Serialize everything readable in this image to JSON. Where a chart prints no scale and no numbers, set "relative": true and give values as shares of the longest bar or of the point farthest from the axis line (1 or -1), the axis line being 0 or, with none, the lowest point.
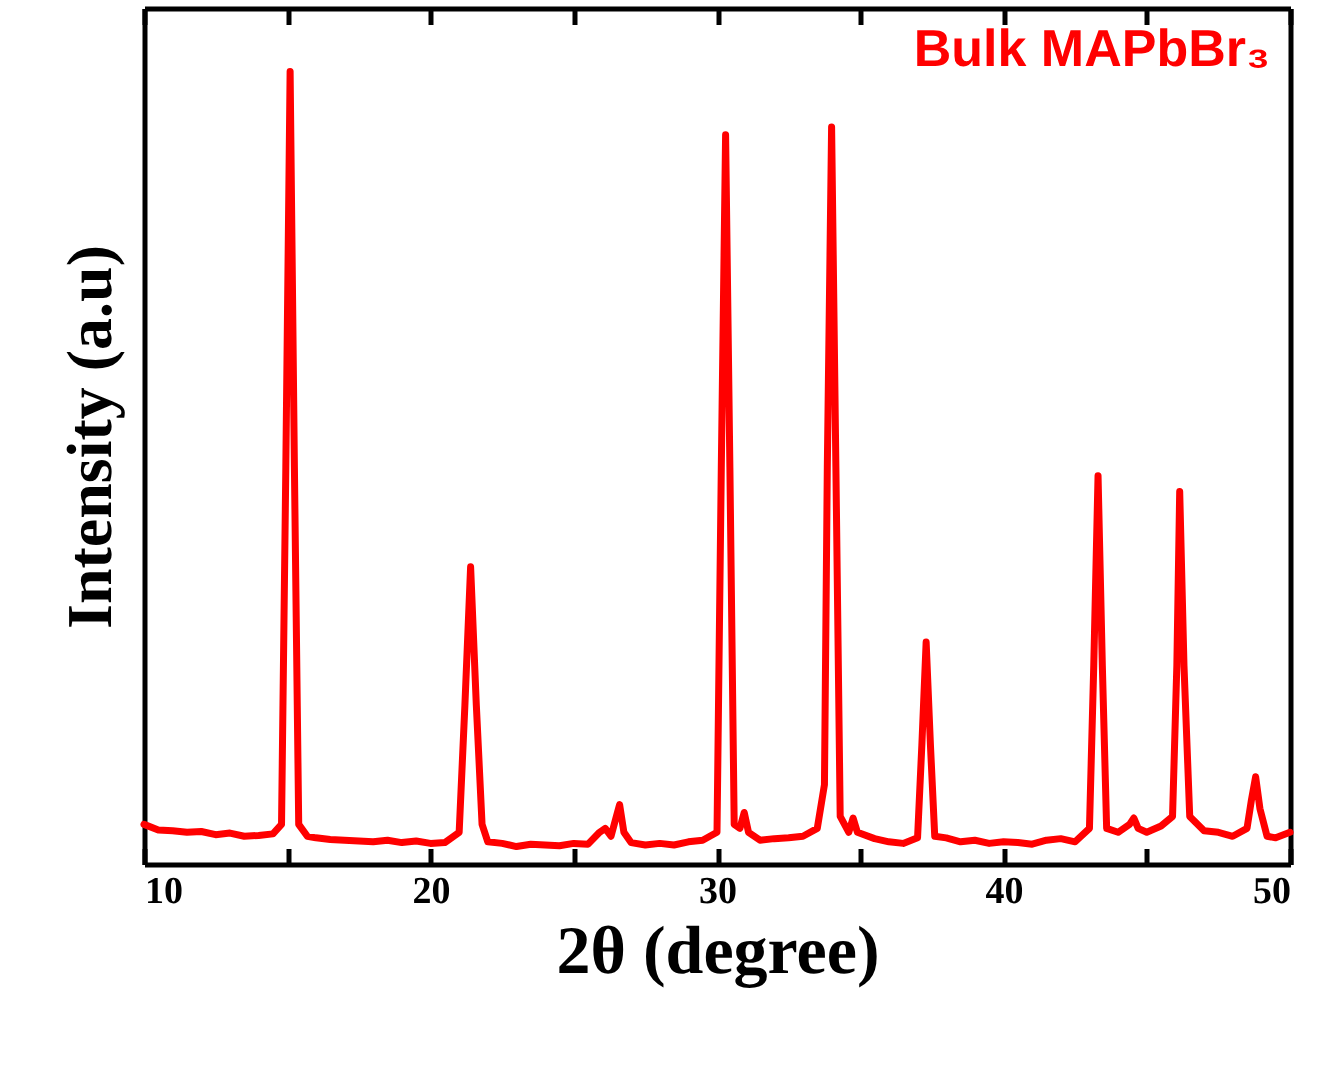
{
  "chart_data": {
    "type": "line",
    "xlabel": "2θ (degree)",
    "ylabel": "Intensity (a.u)",
    "relative": true,
    "legend": false,
    "grid": false,
    "marker": "none",
    "line_style": "solid",
    "xlim": [
      10,
      50
    ],
    "xticks": [
      10,
      {
        "value": 15,
        "label": null
      },
      20,
      {
        "value": 25,
        "label": null
      },
      30,
      {
        "value": 35,
        "label": null
      },
      40,
      {
        "value": 45,
        "label": null
      },
      50
    ],
    "series": [
      {
        "name": "Bulk MAPbBr₃",
        "color": "#ff0000",
        "x": [
          10,
          10.5,
          11,
          11.5,
          12,
          12.5,
          13,
          13.5,
          14,
          14.5,
          14.8,
          14.95,
          15.1,
          15.25,
          15.4,
          15.7,
          16,
          16.5,
          17,
          17.5,
          18,
          18.5,
          19,
          19.5,
          20,
          20.5,
          21,
          21.2,
          21.4,
          21.6,
          21.8,
          22,
          22.5,
          23,
          23.5,
          24,
          24.5,
          25,
          25.5,
          25.9,
          26.1,
          26.3,
          26.45,
          26.6,
          26.75,
          27,
          27.5,
          28,
          28.5,
          29,
          29.5,
          30,
          30.15,
          30.3,
          30.45,
          30.6,
          30.8,
          30.95,
          31.1,
          31.5,
          32,
          32.5,
          33,
          33.5,
          33.75,
          33.85,
          34,
          34.15,
          34.3,
          34.6,
          34.75,
          34.9,
          35.5,
          36,
          36.5,
          37,
          37.15,
          37.3,
          37.45,
          37.6,
          38,
          38.5,
          39,
          39.5,
          40,
          40.5,
          41,
          41.5,
          42,
          42.5,
          43,
          43.15,
          43.3,
          43.45,
          43.6,
          44,
          44.4,
          44.55,
          44.7,
          45,
          45.5,
          45.9,
          46.05,
          46.15,
          46.3,
          46.5,
          47,
          47.5,
          48,
          48.5,
          48.65,
          48.8,
          48.95,
          49.2,
          49.5,
          50
        ],
        "values": [
          0.05,
          0.043,
          0.042,
          0.04,
          0.041,
          0.037,
          0.039,
          0.035,
          0.036,
          0.038,
          0.05,
          0.5,
          1.0,
          0.5,
          0.05,
          0.035,
          0.033,
          0.031,
          0.03,
          0.029,
          0.028,
          0.03,
          0.027,
          0.029,
          0.026,
          0.027,
          0.04,
          0.2,
          0.375,
          0.2,
          0.05,
          0.028,
          0.026,
          0.022,
          0.025,
          0.024,
          0.023,
          0.026,
          0.025,
          0.04,
          0.045,
          0.035,
          0.055,
          0.075,
          0.04,
          0.027,
          0.024,
          0.026,
          0.024,
          0.028,
          0.03,
          0.04,
          0.5,
          0.92,
          0.5,
          0.05,
          0.045,
          0.065,
          0.04,
          0.03,
          0.032,
          0.033,
          0.035,
          0.045,
          0.1,
          0.5,
          0.93,
          0.5,
          0.06,
          0.04,
          0.058,
          0.04,
          0.032,
          0.028,
          0.026,
          0.033,
          0.15,
          0.28,
          0.15,
          0.035,
          0.033,
          0.028,
          0.03,
          0.026,
          0.028,
          0.027,
          0.025,
          0.03,
          0.032,
          0.028,
          0.045,
          0.25,
          0.49,
          0.25,
          0.045,
          0.04,
          0.05,
          0.058,
          0.045,
          0.04,
          0.048,
          0.06,
          0.25,
          0.47,
          0.25,
          0.06,
          0.042,
          0.04,
          0.035,
          0.045,
          0.08,
          0.11,
          0.07,
          0.035,
          0.033,
          0.04
        ]
      }
    ]
  }
}
